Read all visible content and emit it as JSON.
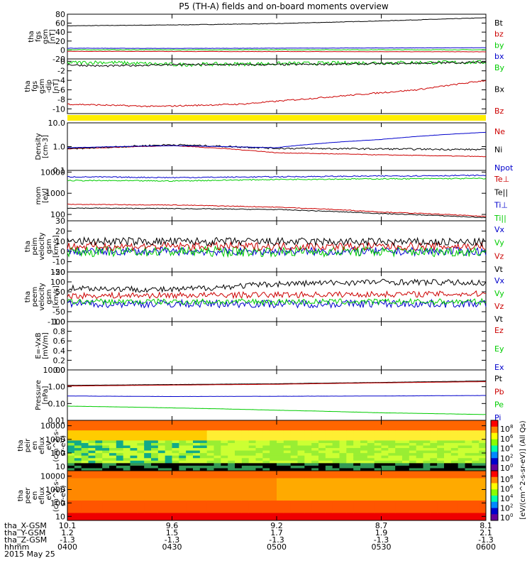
{
  "title": "P5 (TH-A) fields and on-board moments overview",
  "date": "2015 May 25",
  "time_axis": {
    "row_labels": [
      "tha_X-GSM",
      "tha_Y-GSM",
      "tha_Z-GSM",
      "hhmm"
    ],
    "columns": [
      [
        "10.1",
        "1.2",
        "-1.3",
        "0400"
      ],
      [
        "9.6",
        "1.5",
        "-1.3",
        "0430"
      ],
      [
        "9.2",
        "1.7",
        "-1.3",
        "0500"
      ],
      [
        "8.7",
        "1.9",
        "-1.3",
        "0530"
      ],
      [
        "8.1",
        "2.1",
        "-1.3",
        "0600"
      ]
    ]
  },
  "colorbar_label": "[eV/(cm^2-s-sr-eV)] (All Qs)",
  "colorbar_ticks": [
    "10^8",
    "10^6",
    "10^4",
    "10^2",
    "10^0",
    "10^8",
    "10^6",
    "10^4",
    "10^2",
    "10^0"
  ],
  "colors": {
    "red": "#cc0000",
    "green": "#00cc00",
    "blue": "#0000cc",
    "yellow": "#ffee00"
  },
  "chart_data": [
    {
      "id": "fgs_b",
      "type": "line",
      "ylabel": [
        "tha",
        "fgs",
        "gsm",
        "[nT]"
      ],
      "ylim": [
        -20,
        80
      ],
      "yticks": [
        "-20",
        "0",
        "20",
        "40",
        "60",
        "80"
      ],
      "series": [
        {
          "name": "Bt",
          "color": "#000000",
          "x": [
            0,
            30,
            60,
            90,
            120
          ],
          "y": [
            54,
            56,
            59,
            65,
            72
          ],
          "noise": 0.5
        },
        {
          "name": "bz",
          "color": "#cc0000",
          "x": [
            0,
            120
          ],
          "y": [
            -3,
            -4
          ],
          "noise": 0.3
        },
        {
          "name": "by",
          "color": "#00cc00",
          "x": [
            0,
            120
          ],
          "y": [
            0.5,
            0.5
          ],
          "noise": 0.5
        },
        {
          "name": "bx",
          "color": "#0000cc",
          "x": [
            0,
            30,
            60,
            90,
            120
          ],
          "y": [
            4,
            3.5,
            4,
            4.5,
            5
          ],
          "noise": 0.3
        }
      ]
    },
    {
      "id": "fgs_dev",
      "type": "line",
      "ylabel": [
        "tha",
        "fgs",
        "gsm",
        "-dip",
        "[nT]"
      ],
      "ylim": [
        -11,
        0.5
      ],
      "yticks": [
        "-10",
        "-8",
        "-6",
        "-4",
        "-2",
        "0"
      ],
      "series": [
        {
          "name": "By",
          "color": "#00cc00",
          "x": [
            0,
            10,
            30,
            60,
            90,
            120
          ],
          "y": [
            -0.3,
            -0.2,
            -0.7,
            -0.5,
            -0.3,
            -0.2
          ],
          "noise": 0.4
        },
        {
          "name": "Bx",
          "color": "#000000",
          "x": [
            0,
            10,
            30,
            60,
            90,
            120
          ],
          "y": [
            -0.7,
            -1.0,
            -0.7,
            -0.7,
            -0.5,
            -0.2
          ],
          "noise": 0.2
        },
        {
          "name": "Bz",
          "color": "#cc0000",
          "x": [
            0,
            25,
            50,
            75,
            100,
            120
          ],
          "y": [
            -9.0,
            -9.5,
            -9.0,
            -7.5,
            -6.0,
            -4.0
          ],
          "noise": 0.15
        }
      ]
    },
    {
      "id": "density",
      "type": "line",
      "log": true,
      "ylabel": [
        "Density",
        "[cm-3]"
      ],
      "ylim": [
        0.1,
        10
      ],
      "yticks": [
        "0.1",
        "1.0",
        "10.0"
      ],
      "series": [
        {
          "name": "Ne",
          "color": "#cc0000",
          "x": [
            0,
            30,
            60,
            90,
            120
          ],
          "y": [
            0.8,
            1.1,
            0.55,
            0.45,
            0.38
          ],
          "noise": 0.03
        },
        {
          "name": "Ni",
          "color": "#000000",
          "x": [
            0,
            30,
            60,
            90,
            120
          ],
          "y": [
            0.8,
            1.2,
            0.85,
            0.8,
            0.75
          ],
          "noise": 0.08
        },
        {
          "name": "Npot",
          "color": "#0000cc",
          "x": [
            0,
            30,
            60,
            90,
            120
          ],
          "y": [
            0.9,
            1.1,
            0.9,
            2.0,
            4.0
          ],
          "noise": 0.01
        }
      ]
    },
    {
      "id": "temp",
      "type": "line",
      "log": true,
      "ylabel": [
        "mom",
        "[eV]"
      ],
      "ylim": [
        50,
        12000
      ],
      "yticks": [
        "100",
        "1000",
        "10000"
      ],
      "series": [
        {
          "name": "Te⊥",
          "color": "#cc0000",
          "x": [
            0,
            30,
            60,
            90,
            120
          ],
          "y": [
            300,
            280,
            220,
            130,
            80
          ],
          "noise": 0.04
        },
        {
          "name": "Te||",
          "color": "#000000",
          "x": [
            0,
            30,
            60,
            90,
            120
          ],
          "y": [
            200,
            190,
            170,
            110,
            70
          ],
          "noise": 0.04
        },
        {
          "name": "Ti⊥",
          "color": "#0000cc",
          "x": [
            0,
            30,
            60,
            90,
            120
          ],
          "y": [
            6000,
            5500,
            6000,
            6500,
            7000
          ],
          "noise": 0.06
        },
        {
          "name": "Ti||",
          "color": "#00cc00",
          "x": [
            0,
            30,
            60,
            90,
            120
          ],
          "y": [
            4000,
            3800,
            4500,
            4800,
            5000
          ],
          "noise": 0.06
        }
      ]
    },
    {
      "id": "peim_v",
      "type": "line",
      "ylabel": [
        "tha",
        "peim",
        "velocity",
        "gsm",
        "[km/s]"
      ],
      "ylim": [
        -20,
        30
      ],
      "yticks": [
        "-20",
        "-10",
        "0",
        "10",
        "20",
        "30"
      ],
      "series": [
        {
          "name": "Vx",
          "color": "#0000cc",
          "x": [
            0,
            120
          ],
          "y": [
            0,
            0
          ],
          "noise": 4
        },
        {
          "name": "Vy",
          "color": "#00cc00",
          "x": [
            0,
            120
          ],
          "y": [
            0,
            0
          ],
          "noise": 5
        },
        {
          "name": "Vz",
          "color": "#cc0000",
          "x": [
            0,
            120
          ],
          "y": [
            5,
            5
          ],
          "noise": 4
        },
        {
          "name": "Vt",
          "color": "#000000",
          "x": [
            0,
            120
          ],
          "y": [
            10,
            9
          ],
          "noise": 4
        }
      ]
    },
    {
      "id": "peem_v",
      "type": "line",
      "ylabel": [
        "tha",
        "peem",
        "velocity",
        "gsm",
        "[km/s]"
      ],
      "ylim": [
        -100,
        150
      ],
      "yticks": [
        "-100",
        "-50",
        "0",
        "50",
        "100",
        "150"
      ],
      "series": [
        {
          "name": "Vx",
          "color": "#0000cc",
          "x": [
            0,
            120
          ],
          "y": [
            -10,
            -10
          ],
          "noise": 20
        },
        {
          "name": "Vy",
          "color": "#00cc00",
          "x": [
            0,
            120
          ],
          "y": [
            0,
            0
          ],
          "noise": 15
        },
        {
          "name": "Vz",
          "color": "#cc0000",
          "x": [
            0,
            120
          ],
          "y": [
            30,
            40
          ],
          "noise": 15
        },
        {
          "name": "Vt",
          "color": "#000000",
          "x": [
            0,
            30,
            60,
            90,
            120
          ],
          "y": [
            70,
            60,
            90,
            100,
            95
          ],
          "noise": 15
        }
      ]
    },
    {
      "id": "efield",
      "type": "line",
      "ylabel": [
        "E=-VxB",
        "[mV/m]"
      ],
      "ylim": [
        0,
        1
      ],
      "yticks": [
        "0.0",
        "0.2",
        "0.4",
        "0.6",
        "0.8",
        "1.0"
      ],
      "series": [
        {
          "name": "Ez",
          "color": "#cc0000",
          "x": [],
          "y": []
        },
        {
          "name": "Ey",
          "color": "#00cc00",
          "x": [],
          "y": []
        },
        {
          "name": "Ex",
          "color": "#0000cc",
          "x": [],
          "y": []
        }
      ]
    },
    {
      "id": "pressure",
      "type": "line",
      "log": true,
      "ylabel": [
        "Pressure",
        "[nPa]"
      ],
      "ylim": [
        0.01,
        10
      ],
      "yticks": [
        "0.01",
        "0.10",
        "1.00",
        "10.00"
      ],
      "series": [
        {
          "name": "Pt",
          "color": "#000000",
          "x": [
            0,
            30,
            60,
            90,
            120
          ],
          "y": [
            1.2,
            1.35,
            1.5,
            1.8,
            2.2
          ],
          "noise": 0.01
        },
        {
          "name": "Pb",
          "color": "#cc0000",
          "x": [
            0,
            30,
            60,
            90,
            120
          ],
          "y": [
            1.1,
            1.25,
            1.4,
            1.7,
            2.0
          ],
          "noise": 0.005
        },
        {
          "name": "Pe",
          "color": "#00cc00",
          "x": [
            0,
            30,
            60,
            90,
            120
          ],
          "y": [
            0.07,
            0.055,
            0.04,
            0.028,
            0.022
          ],
          "noise": 0.01
        },
        {
          "name": "Pi",
          "color": "#0000cc",
          "x": [
            0,
            30,
            60,
            90,
            120
          ],
          "y": [
            0.28,
            0.26,
            0.27,
            0.28,
            0.3
          ],
          "noise": 0.01
        }
      ]
    },
    {
      "id": "peir_spec",
      "type": "heatmap",
      "ylabel": [
        "tha",
        "peir",
        "en",
        "eflux",
        "eV",
        "(cm^2-s-",
        "sr-eV)"
      ],
      "ylim": [
        5,
        25000
      ],
      "yticks": [
        "10",
        "100",
        "1000",
        "10000"
      ]
    },
    {
      "id": "peer_spec",
      "type": "heatmap",
      "ylabel": [
        "tha",
        "peer",
        "en",
        "eflux",
        "eV",
        "(cm^2-s-",
        "sr-eV)"
      ],
      "ylim": [
        5,
        25000
      ],
      "yticks": [
        "10",
        "100",
        "1000",
        "10000"
      ]
    }
  ]
}
